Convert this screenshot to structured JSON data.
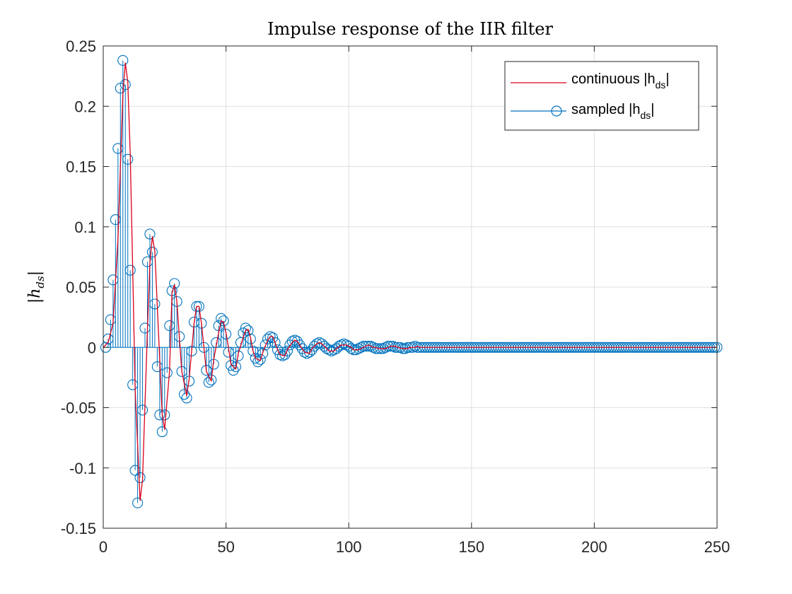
{
  "chart_data": {
    "type": "line",
    "title": "Impulse response of the IIR filter",
    "xlabel": "",
    "ylabel": "|h",
    "ylabel_sub": "ds",
    "ylabel_close": "|",
    "xlim": [
      0,
      250
    ],
    "ylim": [
      -0.15,
      0.25
    ],
    "xticks": [
      0,
      50,
      100,
      150,
      200,
      250
    ],
    "xtick_labels": [
      "0",
      "50",
      "100",
      "150",
      "200",
      "250"
    ],
    "yticks": [
      -0.15,
      -0.1,
      -0.05,
      0,
      0.05,
      0.1,
      0.15,
      0.2,
      0.25
    ],
    "ytick_labels": [
      "-0.15",
      "-0.1",
      "-0.05",
      "0",
      "0.05",
      "0.1",
      "0.15",
      "0.2",
      "0.25"
    ],
    "grid": true,
    "legend_position": "top-right",
    "series": [
      {
        "name": "continuous |h",
        "name_sub": "ds",
        "name_close": "|",
        "kind": "line",
        "color": "#d9001b",
        "x": [
          0,
          2,
          4,
          6,
          8,
          9,
          10,
          11,
          12,
          13,
          15,
          16,
          18,
          19,
          20,
          21,
          22,
          24,
          25,
          27,
          28,
          29,
          30,
          31,
          32,
          34,
          35,
          37,
          38,
          39,
          40,
          41,
          42,
          44,
          45,
          47,
          48,
          49,
          50,
          51,
          52,
          54,
          55,
          57,
          58,
          59,
          60,
          61,
          62,
          64,
          65,
          67,
          68,
          69,
          70,
          71,
          72,
          74,
          75,
          77,
          78,
          79,
          80,
          81,
          82,
          84,
          85,
          87,
          88,
          89,
          90,
          91,
          92,
          94,
          95,
          97,
          98,
          99,
          100,
          101,
          102,
          104,
          105,
          107,
          108,
          109,
          110,
          111,
          112,
          114,
          115,
          117,
          118,
          119,
          120,
          122,
          124,
          125,
          127,
          128,
          129,
          130,
          132,
          134,
          135,
          137,
          139,
          140,
          145,
          150,
          160,
          170,
          180,
          190,
          200,
          210,
          220,
          230,
          240,
          250
        ],
        "y": [
          0,
          0.004,
          0.02,
          0.09,
          0.21,
          0.236,
          0.22,
          0.16,
          0.065,
          -0.035,
          -0.127,
          -0.11,
          0.015,
          0.07,
          0.092,
          0.08,
          0.035,
          -0.055,
          -0.068,
          -0.02,
          0.045,
          0.052,
          0.038,
          0.008,
          -0.02,
          -0.04,
          -0.026,
          0.02,
          0.034,
          0.034,
          0.02,
          0.0,
          -0.02,
          -0.028,
          -0.01,
          0.012,
          0.022,
          0.021,
          0.012,
          0.0,
          -0.014,
          -0.018,
          -0.005,
          0.008,
          0.014,
          0.015,
          0.008,
          -0.003,
          -0.009,
          -0.011,
          -0.004,
          0.006,
          0.009,
          0.009,
          0.004,
          -0.002,
          -0.006,
          -0.007,
          -0.002,
          0.004,
          0.006,
          0.005,
          0.002,
          -0.001,
          -0.004,
          -0.005,
          -0.001,
          0.003,
          0.004,
          0.003,
          0.001,
          -0.001,
          -0.003,
          -0.003,
          -0.001,
          0.002,
          0.002,
          0.002,
          0.001,
          0.0,
          -0.002,
          -0.002,
          -0.001,
          0.001,
          0.002,
          0.001,
          0.0,
          0.0,
          -0.001,
          -0.001,
          -0.001,
          0.001,
          0.001,
          0.001,
          0.0,
          -0.001,
          -0.001,
          0.0,
          0.0,
          0.001,
          0.0,
          0.0,
          0.0,
          0.0,
          0.0,
          0.0,
          0.0,
          0.0,
          0.0,
          0.0,
          0.0,
          0.0,
          0.0,
          0.0,
          0.0,
          0.0,
          0.0,
          0.0,
          0.0,
          0.0
        ]
      },
      {
        "name": "sampled |h",
        "name_sub": "ds",
        "name_close": "|",
        "kind": "stem",
        "color": "#0072bd",
        "x_start": 1,
        "x_step": 1,
        "y": [
          0.0,
          0.007,
          0.023,
          0.056,
          0.106,
          0.165,
          0.215,
          0.238,
          0.218,
          0.156,
          0.064,
          -0.031,
          -0.102,
          -0.129,
          -0.108,
          -0.052,
          0.016,
          0.071,
          0.094,
          0.079,
          0.036,
          -0.016,
          -0.056,
          -0.07,
          -0.056,
          -0.021,
          0.018,
          0.047,
          0.053,
          0.038,
          0.009,
          -0.02,
          -0.039,
          -0.042,
          -0.028,
          -0.003,
          0.021,
          0.034,
          0.034,
          0.02,
          0.0,
          -0.019,
          -0.029,
          -0.027,
          -0.014,
          0.004,
          0.018,
          0.024,
          0.022,
          0.011,
          -0.004,
          -0.015,
          -0.019,
          -0.016,
          -0.007,
          0.004,
          0.012,
          0.016,
          0.014,
          0.007,
          -0.003,
          -0.009,
          -0.012,
          -0.01,
          -0.005,
          0.002,
          0.007,
          0.009,
          0.008,
          0.004,
          -0.002,
          -0.006,
          -0.007,
          -0.006,
          -0.003,
          0.002,
          0.005,
          0.006,
          0.005,
          0.002,
          -0.001,
          -0.004,
          -0.005,
          -0.004,
          -0.002,
          0.001,
          0.003,
          0.004,
          0.003,
          0.001,
          -0.001,
          -0.002,
          -0.003,
          -0.002,
          -0.001,
          0.001,
          0.002,
          0.003,
          0.002,
          0.001,
          -0.001,
          -0.002,
          -0.002,
          -0.001,
          0.0,
          0.001,
          0.001,
          0.001,
          0.001,
          0.0,
          -0.001,
          -0.001,
          -0.001,
          -0.001,
          0.0,
          0.001,
          0.001,
          0.001,
          0.0,
          0.0,
          0.0,
          -0.001,
          -0.001,
          0.0,
          0.0,
          0.0,
          0.001,
          0.0,
          0.0,
          0.0,
          0.0,
          0.0,
          0.0,
          0.0,
          0.0,
          0.0,
          0.0,
          0.0,
          0.0,
          0.0,
          0.0,
          0.0,
          0.0,
          0.0,
          0.0,
          0.0,
          0.0,
          0.0,
          0.0,
          0.0,
          0.0,
          0.0,
          0.0,
          0.0,
          0.0,
          0.0,
          0.0,
          0.0,
          0.0,
          0.0,
          0.0,
          0.0,
          0.0,
          0.0,
          0.0,
          0.0,
          0.0,
          0.0,
          0.0,
          0.0,
          0.0,
          0.0,
          0.0,
          0.0,
          0.0,
          0.0,
          0.0,
          0.0,
          0.0,
          0.0,
          0.0,
          0.0,
          0.0,
          0.0,
          0.0,
          0.0,
          0.0,
          0.0,
          0.0,
          0.0,
          0.0,
          0.0,
          0.0,
          0.0,
          0.0,
          0.0,
          0.0,
          0.0,
          0.0,
          0.0,
          0.0,
          0.0,
          0.0,
          0.0,
          0.0,
          0.0,
          0.0,
          0.0,
          0.0,
          0.0,
          0.0,
          0.0,
          0.0,
          0.0,
          0.0,
          0.0,
          0.0,
          0.0,
          0.0,
          0.0,
          0.0,
          0.0,
          0.0,
          0.0,
          0.0,
          0.0,
          0.0,
          0.0,
          0.0,
          0.0,
          0.0,
          0.0,
          0.0,
          0.0,
          0.0,
          0.0,
          0.0,
          0.0,
          0.0,
          0.0,
          0.0,
          0.0,
          0.0,
          0.0,
          0.0,
          0.0,
          0.0,
          0.0,
          0.0,
          0.0
        ]
      }
    ]
  }
}
